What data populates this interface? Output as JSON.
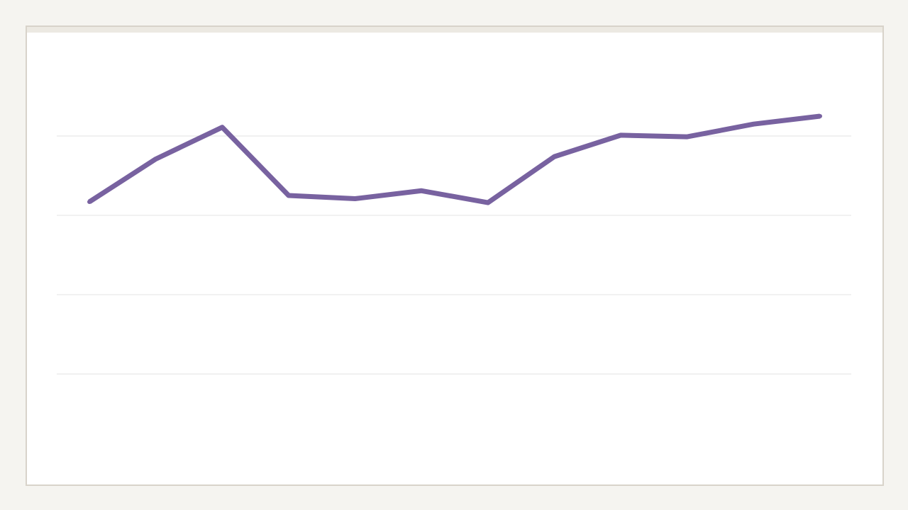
{
  "colors": {
    "page_background": "#f5f4f0",
    "panel_background": "#ffffff",
    "panel_border": "#d8d3ca",
    "panel_topbar": "#ece9e2",
    "gridline": "#e3e3e3",
    "series_line": "#7862a0"
  },
  "chart_data": {
    "type": "line",
    "title": "",
    "xlabel": "",
    "ylabel": "",
    "grid": true,
    "legend": "none",
    "ylim": [
      0,
      5
    ],
    "y_gridlines": [
      1,
      2,
      3,
      4
    ],
    "x": [
      1,
      2,
      3,
      4,
      5,
      6,
      7,
      8,
      9,
      10,
      11,
      12
    ],
    "series": [
      {
        "values": [
          3.17,
          3.71,
          4.11,
          3.25,
          3.21,
          3.31,
          3.16,
          3.74,
          4.01,
          3.99,
          4.15,
          4.25
        ]
      }
    ]
  }
}
